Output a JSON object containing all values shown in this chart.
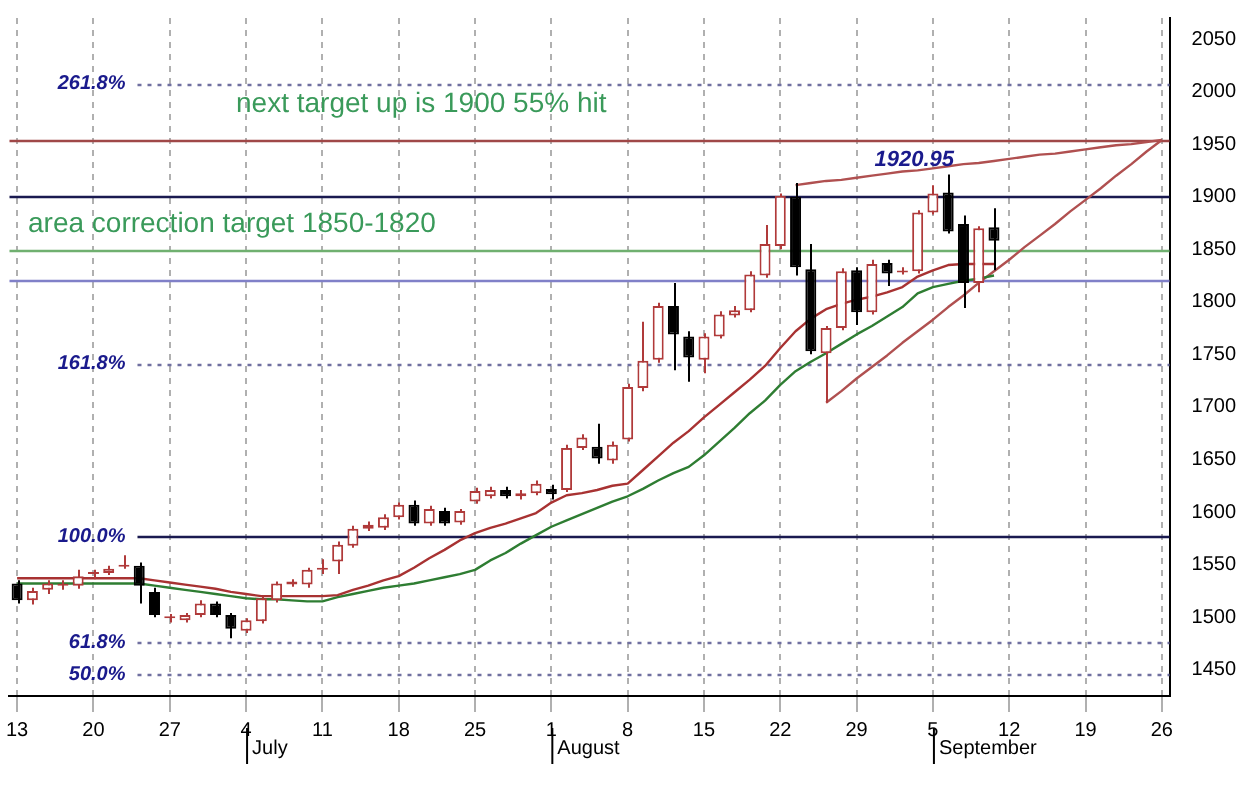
{
  "chart_data": {
    "type": "candlestick",
    "colors": [
      "#000000",
      "#b03a3a",
      "#b03a3a",
      "#b03a3a",
      "#b03a3a",
      "#b03a3a",
      "#b03a3a",
      "#b03a3a",
      "#000000",
      "#000000",
      "#b03a3a",
      "#b03a3a",
      "#b03a3a",
      "#000000",
      "#000000",
      "#b03a3a",
      "#b03a3a",
      "#b03a3a",
      "#b03a3a",
      "#b03a3a",
      "#b03a3a",
      "#b03a3a",
      "#b03a3a",
      "#b03a3a",
      "#b03a3a",
      "#b03a3a",
      "#000000",
      "#b03a3a",
      "#000000",
      "#b03a3a",
      "#b03a3a",
      "#b03a3a",
      "#000000",
      "#b03a3a",
      "#b03a3a",
      "#000000",
      "#b03a3a",
      "#b03a3a",
      "#000000",
      "#b03a3a",
      "#b03a3a",
      "#b03a3a",
      "#b03a3a",
      "#000000",
      "#000000",
      "#b03a3a",
      "#b03a3a",
      "#b03a3a",
      "#b03a3a",
      "#b03a3a",
      "#b03a3a",
      "#000000",
      "#000000",
      "#b03a3a",
      "#b03a3a",
      "#000000",
      "#b03a3a",
      "#000000",
      "#b03a3a",
      "#b03a3a",
      "#b03a3a",
      "#000000",
      "#000000",
      "#b03a3a",
      "#000000",
      null,
      null,
      null,
      null,
      null,
      null,
      null,
      null,
      null,
      null,
      null
    ],
    "categories": [
      "13",
      null,
      null,
      null,
      null,
      "20",
      null,
      null,
      null,
      null,
      "27",
      null,
      null,
      null,
      null,
      "4",
      null,
      null,
      null,
      null,
      "11",
      null,
      null,
      null,
      null,
      "18",
      null,
      null,
      null,
      null,
      "25",
      null,
      null,
      null,
      null,
      "1",
      null,
      null,
      null,
      null,
      "8",
      null,
      null,
      null,
      null,
      "15",
      null,
      null,
      null,
      null,
      "22",
      null,
      null,
      null,
      null,
      "29",
      null,
      null,
      null,
      null,
      "5",
      null,
      null,
      null,
      null,
      "12",
      null,
      null,
      null,
      null,
      "19",
      null,
      null,
      null,
      null,
      "26"
    ],
    "ohlc": [
      [
        1532,
        1535,
        1513,
        1516
      ],
      [
        1516,
        1528,
        1512,
        1525
      ],
      [
        1526,
        1535,
        1522,
        1532
      ],
      [
        1530,
        1535,
        1526,
        1531
      ],
      [
        1530,
        1545,
        1527,
        1539
      ],
      [
        1541,
        1545,
        1536,
        1541
      ],
      [
        1542,
        1549,
        1540,
        1546
      ],
      [
        1548,
        1559,
        1546,
        1549
      ],
      [
        1549,
        1552,
        1513,
        1530
      ],
      [
        1524,
        1528,
        1500,
        1502
      ],
      [
        1499,
        1503,
        1495,
        1499
      ],
      [
        1497,
        1504,
        1495,
        1502
      ],
      [
        1502,
        1516,
        1500,
        1513
      ],
      [
        1513,
        1515,
        1500,
        1502
      ],
      [
        1502,
        1504,
        1480,
        1489
      ],
      [
        1487,
        1499,
        1485,
        1497
      ],
      [
        1496,
        1520,
        1494,
        1518
      ],
      [
        1516,
        1534,
        1514,
        1532
      ],
      [
        1531,
        1536,
        1529,
        1534
      ],
      [
        1531,
        1547,
        1528,
        1545
      ],
      [
        1545,
        1555,
        1541,
        1547
      ],
      [
        1553,
        1572,
        1541,
        1569
      ],
      [
        1568,
        1587,
        1566,
        1584
      ],
      [
        1584,
        1591,
        1582,
        1588
      ],
      [
        1585,
        1598,
        1583,
        1595
      ],
      [
        1595,
        1609,
        1593,
        1607
      ],
      [
        1607,
        1611,
        1587,
        1589
      ],
      [
        1589,
        1606,
        1587,
        1603
      ],
      [
        1601,
        1604,
        1587,
        1589
      ],
      [
        1590,
        1603,
        1588,
        1601
      ],
      [
        1610,
        1623,
        1608,
        1620
      ],
      [
        1615,
        1624,
        1613,
        1621
      ],
      [
        1621,
        1624,
        1613,
        1615
      ],
      [
        1615,
        1621,
        1612,
        1618
      ],
      [
        1618,
        1630,
        1616,
        1627
      ],
      [
        1622,
        1626,
        1612,
        1617
      ],
      [
        1621,
        1664,
        1619,
        1661
      ],
      [
        1661,
        1674,
        1659,
        1671
      ],
      [
        1662,
        1684,
        1646,
        1651
      ],
      [
        1649,
        1667,
        1646,
        1664
      ],
      [
        1669,
        1722,
        1667,
        1719
      ],
      [
        1718,
        1781,
        1715,
        1744
      ],
      [
        1745,
        1799,
        1742,
        1796
      ],
      [
        1796,
        1818,
        1735,
        1769
      ],
      [
        1767,
        1772,
        1724,
        1747
      ],
      [
        1745,
        1770,
        1732,
        1767
      ],
      [
        1767,
        1791,
        1765,
        1788
      ],
      [
        1787,
        1796,
        1785,
        1792
      ],
      [
        1792,
        1829,
        1790,
        1826
      ],
      [
        1825,
        1873,
        1823,
        1855
      ],
      [
        1853,
        1903,
        1850,
        1901
      ],
      [
        1900,
        1913,
        1825,
        1833
      ],
      [
        1831,
        1855,
        1750,
        1753
      ],
      [
        1751,
        1777,
        1704,
        1775
      ],
      [
        1775,
        1832,
        1773,
        1829
      ],
      [
        1830,
        1833,
        1778,
        1790
      ],
      [
        1790,
        1840,
        1788,
        1836
      ],
      [
        1837,
        1840,
        1815,
        1827
      ],
      [
        1828,
        1833,
        1826,
        1829
      ],
      [
        1829,
        1887,
        1827,
        1885
      ],
      [
        1885,
        1911,
        1883,
        1903
      ],
      [
        1904,
        1921,
        1865,
        1867
      ],
      [
        1874,
        1882,
        1794,
        1818
      ],
      [
        1818,
        1872,
        1809,
        1870
      ],
      [
        1871,
        1889,
        1830,
        1858
      ],
      null,
      null,
      null,
      null,
      null,
      null,
      null,
      null,
      null,
      null,
      null
    ],
    "series": [
      {
        "type": "line",
        "color": "#a83232",
        "values": [
          1537,
          1537,
          1537,
          1537,
          1537,
          1537,
          1537,
          1537,
          1537,
          1535,
          1533,
          1531,
          1529,
          1527,
          1524,
          1522,
          1520,
          1520,
          1520,
          1520,
          1520,
          1521,
          1526,
          1530,
          1535,
          1539,
          1547,
          1556,
          1564,
          1573,
          1580,
          1585,
          1589,
          1594,
          1599,
          1609,
          1616,
          1618,
          1621,
          1625,
          1627,
          1640,
          1653,
          1666,
          1677,
          1690,
          1702,
          1714,
          1726,
          1739,
          1756,
          1772,
          1784,
          1793,
          1798,
          1802,
          1805,
          1809,
          1814,
          1824,
          1830,
          1835,
          1836,
          1836,
          1836,
          null,
          null,
          null,
          null,
          null,
          null,
          null,
          null,
          null,
          null,
          null
        ]
      },
      {
        "type": "line",
        "color": "#2e7d32",
        "values": [
          1532,
          1532,
          1532,
          1532,
          1532,
          1532,
          1532,
          1532,
          1532,
          1530,
          1528,
          1526,
          1524,
          1522,
          1520,
          1518,
          1517,
          1517,
          1516,
          1515,
          1515,
          1519,
          1522,
          1525,
          1528,
          1530,
          1532,
          1535,
          1538,
          1541,
          1545,
          1554,
          1561,
          1570,
          1578,
          1586,
          1592,
          1598,
          1604,
          1610,
          1615,
          1622,
          1630,
          1637,
          1643,
          1654,
          1667,
          1680,
          1694,
          1706,
          1721,
          1734,
          1743,
          1751,
          1760,
          1769,
          1777,
          1786,
          1795,
          1808,
          1814,
          1817,
          1820,
          1822,
          1825,
          null,
          null,
          null,
          null,
          null,
          null,
          null,
          null,
          null,
          null,
          null
        ]
      },
      {
        "type": "line",
        "color": "#b05050",
        "values": [
          null,
          null,
          null,
          null,
          null,
          null,
          null,
          null,
          null,
          null,
          null,
          null,
          null,
          null,
          null,
          null,
          null,
          null,
          null,
          null,
          null,
          null,
          null,
          null,
          null,
          null,
          null,
          null,
          null,
          null,
          null,
          null,
          null,
          null,
          null,
          null,
          null,
          null,
          null,
          null,
          null,
          null,
          null,
          null,
          null,
          null,
          null,
          null,
          null,
          null,
          null,
          1911,
          1913,
          1915,
          1916,
          1918,
          1920,
          1922,
          1924,
          1925,
          1927,
          1929,
          1931,
          1932,
          1934,
          1936,
          1938,
          1940,
          1941,
          1943,
          1945,
          1947,
          1949,
          1950,
          1952,
          1954
        ]
      },
      {
        "type": "line",
        "color": "#b05050",
        "values": [
          null,
          null,
          null,
          null,
          null,
          null,
          null,
          null,
          null,
          null,
          null,
          null,
          null,
          null,
          null,
          null,
          null,
          null,
          null,
          null,
          null,
          null,
          null,
          null,
          null,
          null,
          null,
          null,
          null,
          null,
          null,
          null,
          null,
          null,
          null,
          null,
          null,
          null,
          null,
          null,
          null,
          null,
          null,
          null,
          null,
          null,
          null,
          null,
          null,
          null,
          null,
          null,
          null,
          1704,
          1715,
          1727,
          1738,
          1749,
          1761,
          1772,
          1783,
          1795,
          1806,
          1818,
          1829,
          1840,
          1852,
          1863,
          1874,
          1886,
          1897,
          1908,
          1920,
          1931,
          1943,
          1954
        ]
      }
    ],
    "ylim": [
      1425,
      2070
    ],
    "yticks": [
      1450,
      1500,
      1550,
      1600,
      1650,
      1700,
      1750,
      1800,
      1850,
      1900,
      1950,
      2000,
      2050
    ],
    "grid": "x",
    "legend": false,
    "marker": "none",
    "ref_lines": [
      {
        "axis": "y",
        "value": 2008,
        "color": "#7070a0",
        "line_style": "dotted"
      },
      {
        "axis": "y",
        "value": 1953,
        "color": "#a04848",
        "line_style": "solid"
      },
      {
        "axis": "y",
        "value": 1900,
        "color": "#1a1a50",
        "line_style": "solid"
      },
      {
        "axis": "y",
        "value": 1850,
        "color": "#70b070",
        "line_style": "solid"
      },
      {
        "axis": "y",
        "value": 1820,
        "color": "#8080c8",
        "line_style": "solid"
      },
      {
        "axis": "y",
        "value": 1741,
        "color": "#7070a0",
        "line_style": "dotted"
      },
      {
        "axis": "y",
        "value": 1577,
        "color": "#1a1a50",
        "line_style": "solid"
      },
      {
        "axis": "y",
        "value": 1476,
        "color": "#7070a0",
        "line_style": "dotted"
      },
      {
        "axis": "y",
        "value": 1445,
        "color": "#7070a0",
        "line_style": "dotted"
      }
    ],
    "annotations": [
      "next target up is 1900 55% hit",
      "area correction target 1850-1820",
      {
        "text": "1920.95",
        "y": 1920.95
      },
      "July",
      "August",
      "September",
      "261.8%",
      "161.8%",
      "100.0%",
      "61.8%",
      "50.0%"
    ]
  }
}
